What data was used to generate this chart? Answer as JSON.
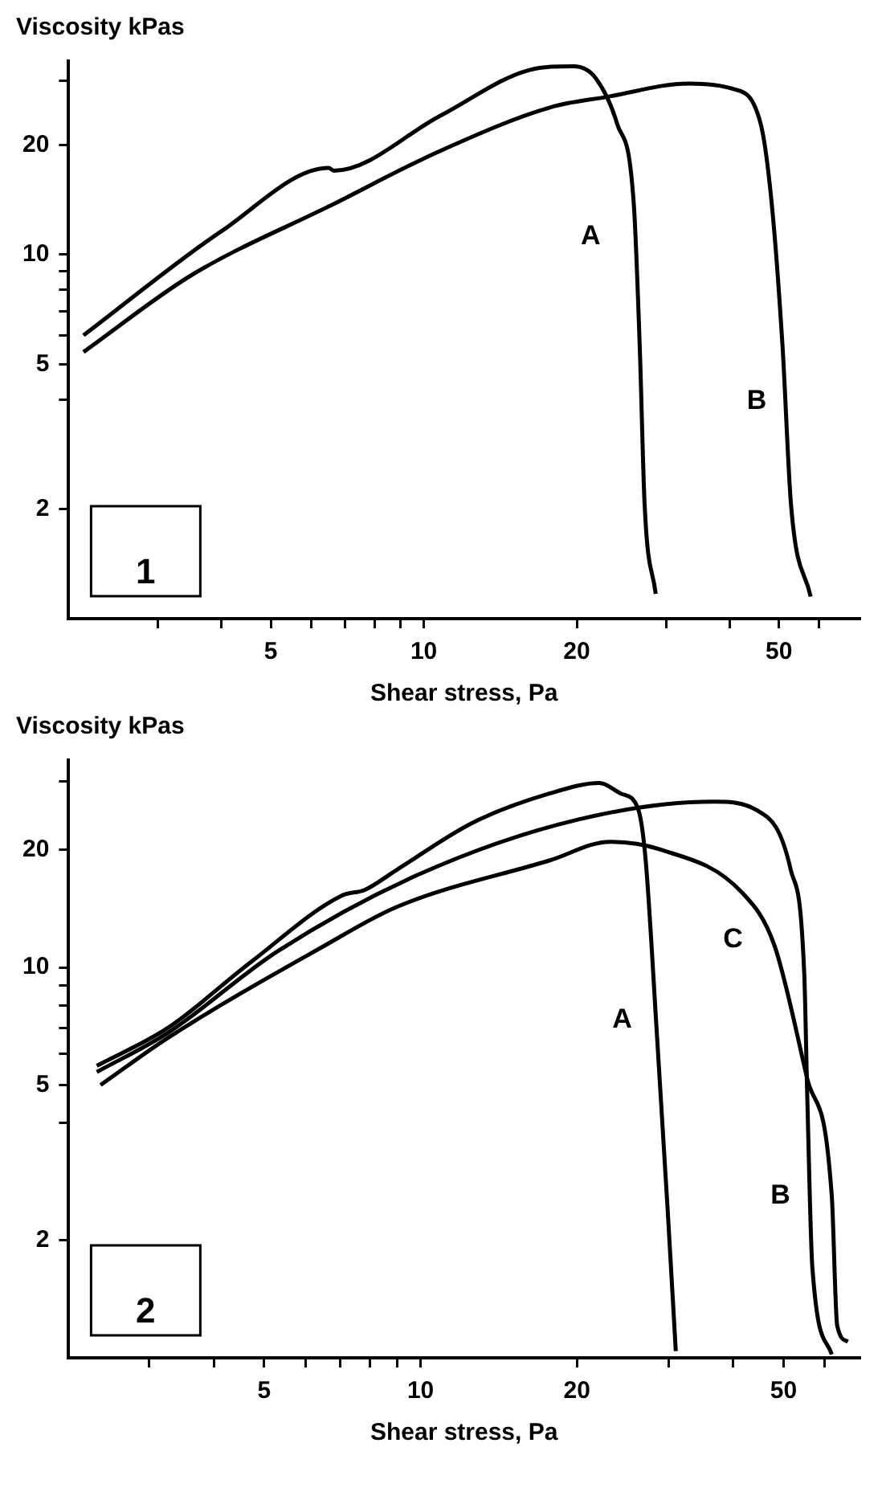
{
  "chart_data": [
    {
      "type": "line",
      "ylabel": "Viscosity kPas",
      "xlabel": "Shear stress, Pa",
      "log": "xy",
      "grid": false,
      "xlim": [
        2,
        72
      ],
      "ylim": [
        1,
        34
      ],
      "xticks": [
        {
          "value": 3,
          "label": null
        },
        {
          "value": 4,
          "label": null
        },
        5,
        {
          "value": 6,
          "label": null
        },
        {
          "value": 7,
          "label": null
        },
        {
          "value": 8,
          "label": null
        },
        {
          "value": 9,
          "label": null
        },
        10,
        20,
        {
          "value": 30,
          "label": null
        },
        {
          "value": 40,
          "label": null
        },
        50,
        {
          "value": 60,
          "label": null
        }
      ],
      "yticks": [
        2,
        {
          "value": 4,
          "label": null
        },
        5,
        {
          "value": 6,
          "label": null
        },
        {
          "value": 7,
          "label": null
        },
        {
          "value": 8,
          "label": null
        },
        {
          "value": 9,
          "label": null
        },
        10,
        20,
        {
          "value": 30,
          "label": null
        }
      ],
      "series": [
        {
          "name": "A",
          "color": "#000000",
          "x": [
            2.14,
            4.0,
            6.5,
            6.65,
            10.8,
            16.1,
            19.7,
            21.8,
            24.0,
            25.9,
            26.6,
            27.2,
            28.6
          ],
          "values": [
            6.0,
            11.6,
            17.3,
            17.0,
            24.1,
            32.1,
            32.9,
            30.5,
            22.9,
            13.7,
            5.6,
            2.05,
            1.17
          ]
        },
        {
          "name": "B",
          "color": "#000000",
          "x": [
            2.14,
            3.5,
            6.6,
            10.8,
            17.8,
            22.9,
            33.3,
            40.6,
            46.0,
            48.4,
            50.8,
            52.8,
            57.7
          ],
          "values": [
            5.4,
            8.8,
            13.7,
            19.3,
            25.4,
            27.1,
            29.5,
            28.5,
            22.9,
            13.7,
            5.6,
            2.05,
            1.15
          ]
        }
      ],
      "annotations": [
        "1"
      ]
    },
    {
      "type": "line",
      "ylabel": "Viscosity kPas",
      "xlabel": "Shear stress, Pa",
      "log": "xy",
      "grid": false,
      "xlim": [
        2.1,
        70
      ],
      "ylim": [
        1,
        34
      ],
      "xticks": [
        {
          "value": 3,
          "label": null
        },
        {
          "value": 4,
          "label": null
        },
        5,
        {
          "value": 6,
          "label": null
        },
        {
          "value": 7,
          "label": null
        },
        {
          "value": 8,
          "label": null
        },
        {
          "value": 9,
          "label": null
        },
        10,
        20,
        {
          "value": 30,
          "label": null
        },
        {
          "value": 40,
          "label": null
        },
        50,
        {
          "value": 60,
          "label": null
        }
      ],
      "yticks": [
        2,
        {
          "value": 4,
          "label": null
        },
        5,
        {
          "value": 6,
          "label": null
        },
        {
          "value": 7,
          "label": null
        },
        {
          "value": 8,
          "label": null
        },
        {
          "value": 9,
          "label": null
        },
        10,
        20,
        {
          "value": 30,
          "label": null
        }
      ],
      "series": [
        {
          "name": "A",
          "color": "#000000",
          "x": [
            2.38,
            3.26,
            4.7,
            7.06,
            7.8,
            9.0,
            12.6,
            17.7,
            22.1,
            24.3,
            26.2,
            27.1,
            28.5,
            29.9,
            31.0
          ],
          "values": [
            5.6,
            7.0,
            10.3,
            15.3,
            15.8,
            17.8,
            23.5,
            27.9,
            29.7,
            27.9,
            25.6,
            19.1,
            6.8,
            2.4,
            1.04
          ]
        },
        {
          "name": "B",
          "color": "#000000",
          "x": [
            2.38,
            3.26,
            5.3,
            9.9,
            20.0,
            36.7,
            44.6,
            51.6,
            54.8,
            55.5,
            56.8,
            61.9
          ],
          "values": [
            5.4,
            6.8,
            11.0,
            17.3,
            23.9,
            26.6,
            25.2,
            17.8,
            9.6,
            4.8,
            1.7,
            1.02
          ]
        },
        {
          "name": "C",
          "color": "#000000",
          "x": [
            2.42,
            3.26,
            6.4,
            9.0,
            17.7,
            23.2,
            28.8,
            41.5,
            48.0,
            55.5,
            61.9,
            63.4,
            66.5
          ],
          "values": [
            5.0,
            6.6,
            11.2,
            14.3,
            18.8,
            21.0,
            20.1,
            15.6,
            11.4,
            5.2,
            2.6,
            1.21,
            1.1
          ]
        }
      ],
      "annotations": [
        "2"
      ]
    }
  ]
}
